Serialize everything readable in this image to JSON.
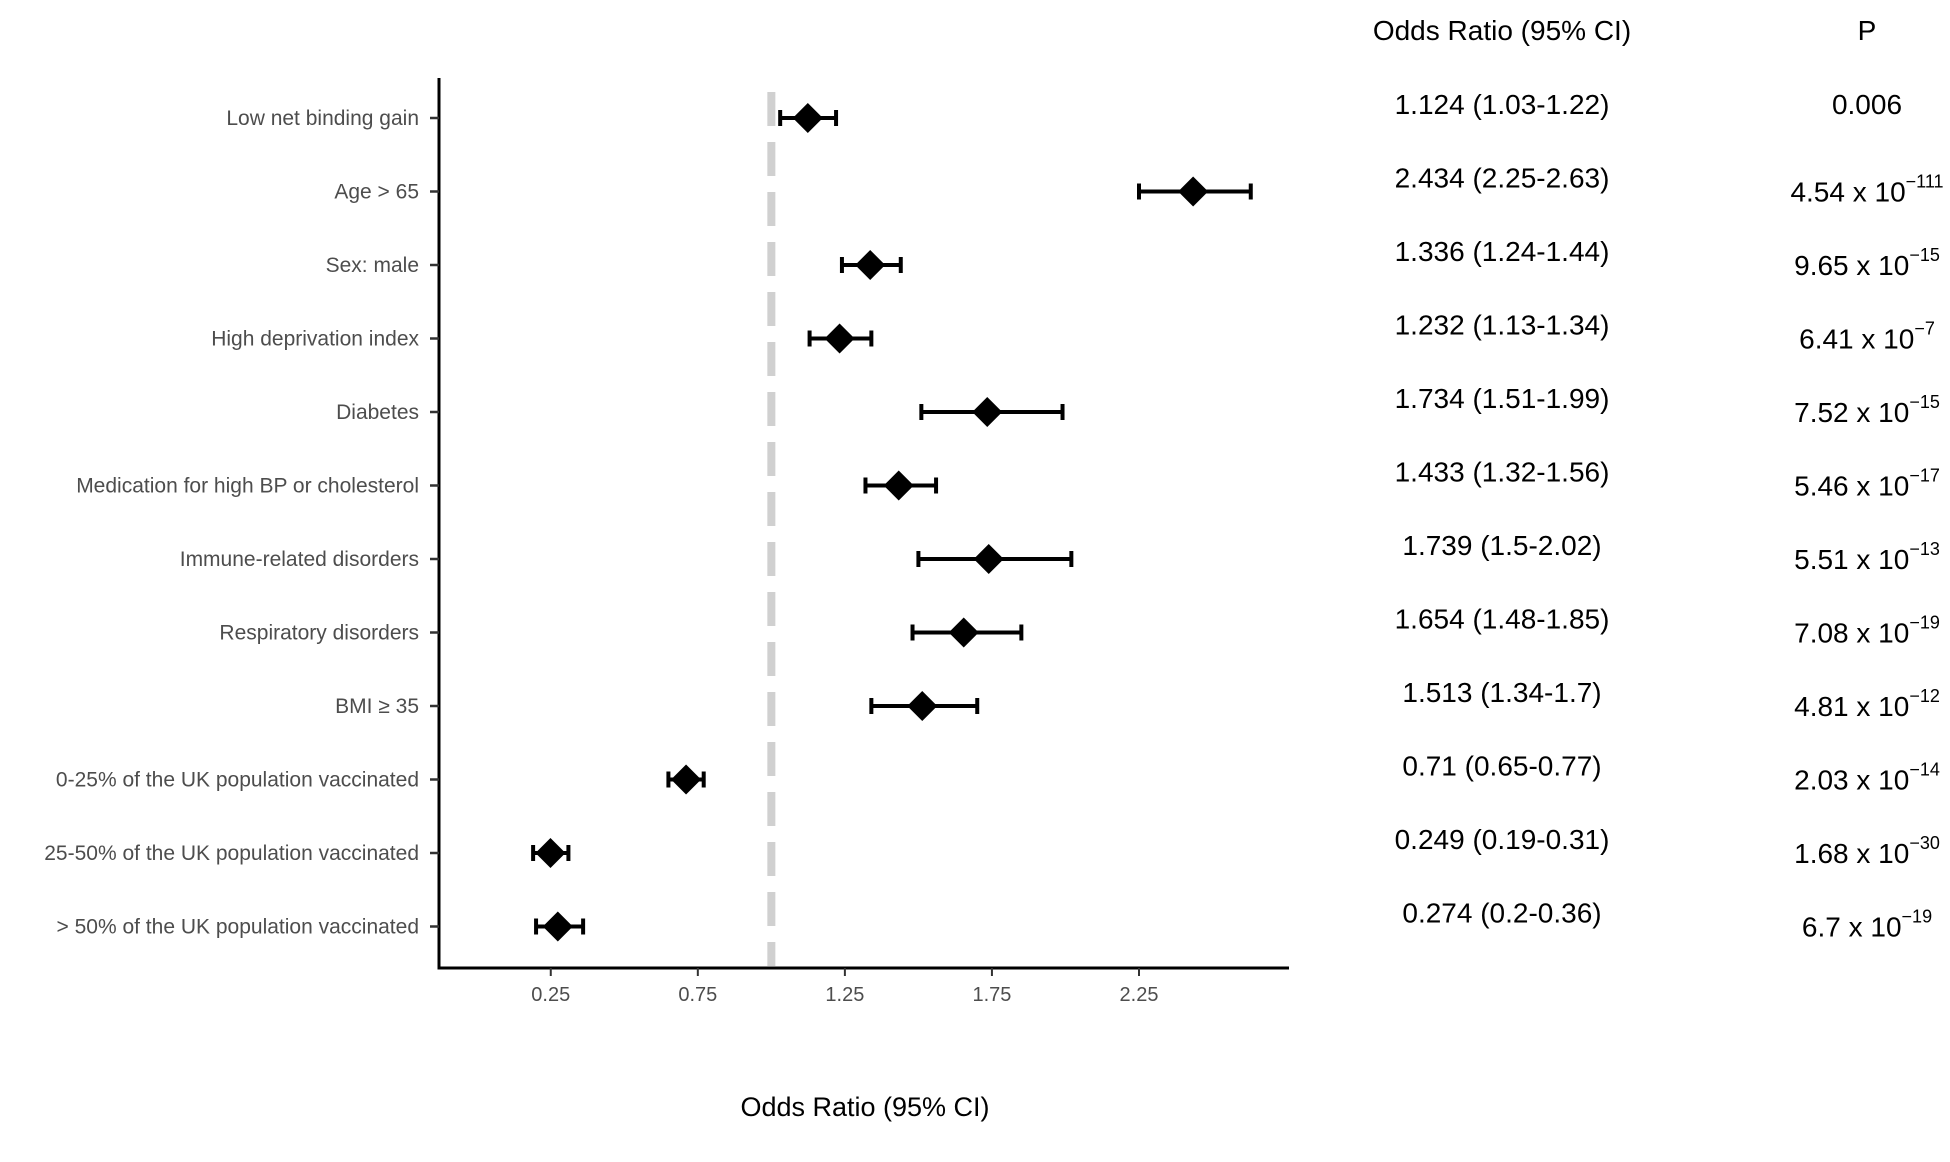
{
  "chart_data": {
    "type": "forest",
    "xlabel": "Odds Ratio (95% CI)",
    "x_ticks": [
      0.25,
      0.75,
      1.25,
      1.75,
      2.25
    ],
    "x_tick_labels": [
      "0.25",
      "0.75",
      "1.25",
      "1.75",
      "2.25"
    ],
    "xlim": [
      -0.13,
      2.76
    ],
    "reference_line": 1,
    "columns": {
      "or_header": "Odds Ratio (95% CI)",
      "p_header": "P"
    },
    "rows": [
      {
        "label": "Low net binding gain",
        "or": 1.124,
        "lo": 1.03,
        "hi": 1.22,
        "or_text": "1.124 (1.03-1.22)",
        "p_text": "0.006"
      },
      {
        "label": "Age > 65",
        "or": 2.434,
        "lo": 2.25,
        "hi": 2.63,
        "or_text": "2.434 (2.25-2.63)",
        "p_text": "4.54 x 10",
        "p_exp": "−111"
      },
      {
        "label": "Sex: male",
        "or": 1.336,
        "lo": 1.24,
        "hi": 1.44,
        "or_text": "1.336 (1.24-1.44)",
        "p_text": "9.65 x 10",
        "p_exp": "−15"
      },
      {
        "label": "High deprivation index",
        "or": 1.232,
        "lo": 1.13,
        "hi": 1.34,
        "or_text": "1.232 (1.13-1.34)",
        "p_text": "6.41 x 10",
        "p_exp": "−7"
      },
      {
        "label": "Diabetes",
        "or": 1.734,
        "lo": 1.51,
        "hi": 1.99,
        "or_text": "1.734 (1.51-1.99)",
        "p_text": "7.52 x 10",
        "p_exp": "−15"
      },
      {
        "label": "Medication for high BP or cholesterol",
        "or": 1.433,
        "lo": 1.32,
        "hi": 1.56,
        "or_text": "1.433 (1.32-1.56)",
        "p_text": "5.46 x 10",
        "p_exp": "−17"
      },
      {
        "label": "Immune-related disorders",
        "or": 1.739,
        "lo": 1.5,
        "hi": 2.02,
        "or_text": "1.739 (1.5-2.02)",
        "p_text": "5.51 x 10",
        "p_exp": "−13"
      },
      {
        "label": "Respiratory disorders",
        "or": 1.654,
        "lo": 1.48,
        "hi": 1.85,
        "or_text": "1.654 (1.48-1.85)",
        "p_text": "7.08 x 10",
        "p_exp": "−19"
      },
      {
        "label": "BMI ≥ 35",
        "or": 1.513,
        "lo": 1.34,
        "hi": 1.7,
        "or_text": "1.513 (1.34-1.7)",
        "p_text": "4.81 x 10",
        "p_exp": "−12"
      },
      {
        "label": "0-25% of the UK population vaccinated",
        "or": 0.71,
        "lo": 0.65,
        "hi": 0.77,
        "or_text": "0.71 (0.65-0.77)",
        "p_text": "2.03 x 10",
        "p_exp": "−14"
      },
      {
        "label": "25-50% of the UK population vaccinated",
        "or": 0.249,
        "lo": 0.19,
        "hi": 0.31,
        "or_text": "0.249 (0.19-0.31)",
        "p_text": "1.68 x 10",
        "p_exp": "−30"
      },
      {
        "label": "> 50% of the UK population vaccinated",
        "or": 0.274,
        "lo": 0.2,
        "hi": 0.36,
        "or_text": "0.274 (0.2-0.36)",
        "p_text": "6.7 x 10",
        "p_exp": "−19"
      }
    ]
  }
}
